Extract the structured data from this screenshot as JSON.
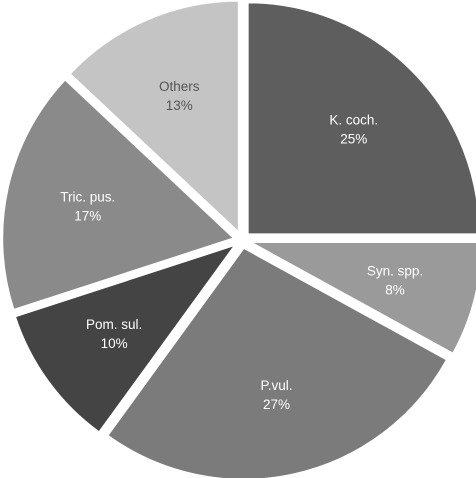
{
  "chart_data": {
    "type": "pie",
    "title": "",
    "slices": [
      {
        "label": "K. coch.",
        "value": 25,
        "value_label": "25%",
        "color": "#5e5e5e",
        "text_color": "#ffffff"
      },
      {
        "label": "Syn. spp.",
        "value": 8,
        "value_label": "8%",
        "color": "#9a9a9a",
        "text_color": "#ffffff"
      },
      {
        "label": "P.vul.",
        "value": 27,
        "value_label": "27%",
        "color": "#7b7b7b",
        "text_color": "#ffffff"
      },
      {
        "label": "Pom. sul.",
        "value": 10,
        "value_label": "10%",
        "color": "#444444",
        "text_color": "#ffffff"
      },
      {
        "label": "Tric. pus.",
        "value": 17,
        "value_label": "17%",
        "color": "#8a8a8a",
        "text_color": "#ffffff"
      },
      {
        "label": "Others",
        "value": 13,
        "value_label": "13%",
        "color": "#c4c4c4",
        "text_color": "#555555"
      }
    ],
    "legend": "none",
    "start_angle": "12 o'clock",
    "direction": "clockwise",
    "slice_style": "exploded"
  }
}
